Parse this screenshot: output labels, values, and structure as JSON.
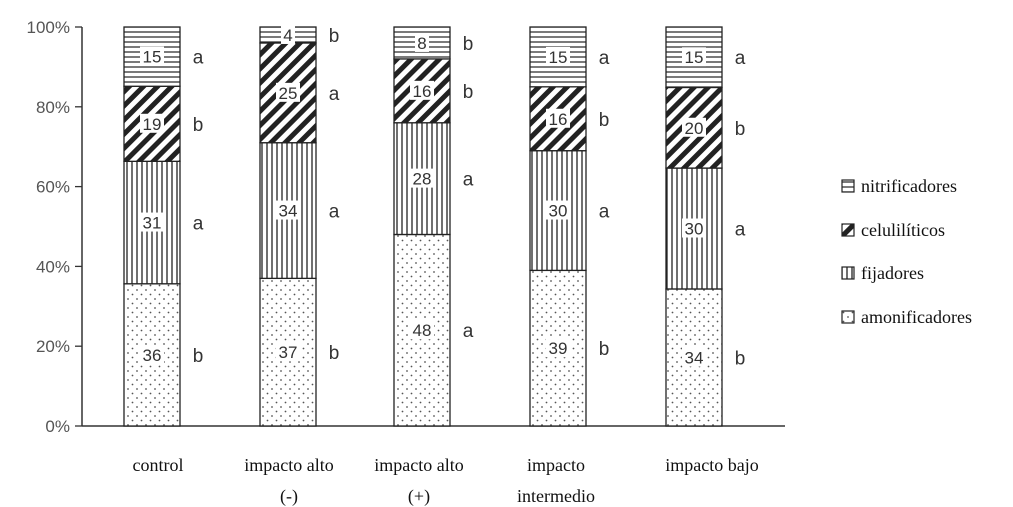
{
  "chart_data": {
    "type": "bar",
    "stacked": true,
    "percent_stacked": true,
    "categories": [
      [
        "control"
      ],
      [
        "impacto alto",
        "(-)"
      ],
      [
        "impacto alto",
        "(+)"
      ],
      [
        "impacto",
        "intermedio"
      ],
      [
        "impacto bajo"
      ]
    ],
    "yticks": [
      "0%",
      "20%",
      "40%",
      "60%",
      "80%",
      "100%"
    ],
    "ylim": [
      0,
      100
    ],
    "series": [
      {
        "name": "amonificadores",
        "pattern": "dots",
        "values": [
          36,
          37,
          48,
          39,
          34
        ],
        "labels": [
          "36",
          "37",
          "48",
          "39",
          "34"
        ],
        "letters": [
          "b",
          "b",
          "a",
          "b",
          "b"
        ]
      },
      {
        "name": "fijadores",
        "pattern": "vertical",
        "values": [
          31,
          34,
          28,
          30,
          30
        ],
        "labels": [
          "31",
          "34",
          "28",
          "30",
          "30"
        ],
        "letters": [
          "a",
          "a",
          "a",
          "a",
          "a"
        ]
      },
      {
        "name": "celulilíticos",
        "pattern": "diagonal",
        "values": [
          19,
          25,
          16,
          16,
          20
        ],
        "labels": [
          "19",
          "25",
          "16",
          "16",
          "20"
        ],
        "letters": [
          "b",
          "a",
          "b",
          "b",
          "b"
        ]
      },
      {
        "name": "nitrificadores",
        "pattern": "horizontal",
        "values": [
          15,
          4,
          8,
          15,
          15
        ],
        "labels": [
          "15",
          "4",
          "8",
          "15",
          "15"
        ],
        "letters": [
          "a",
          "b",
          "b",
          "a",
          "a"
        ]
      }
    ],
    "legend_order": [
      "nitrificadores",
      "celulilíticos",
      "fijadores",
      "amonificadores"
    ],
    "legend_position": "right"
  }
}
